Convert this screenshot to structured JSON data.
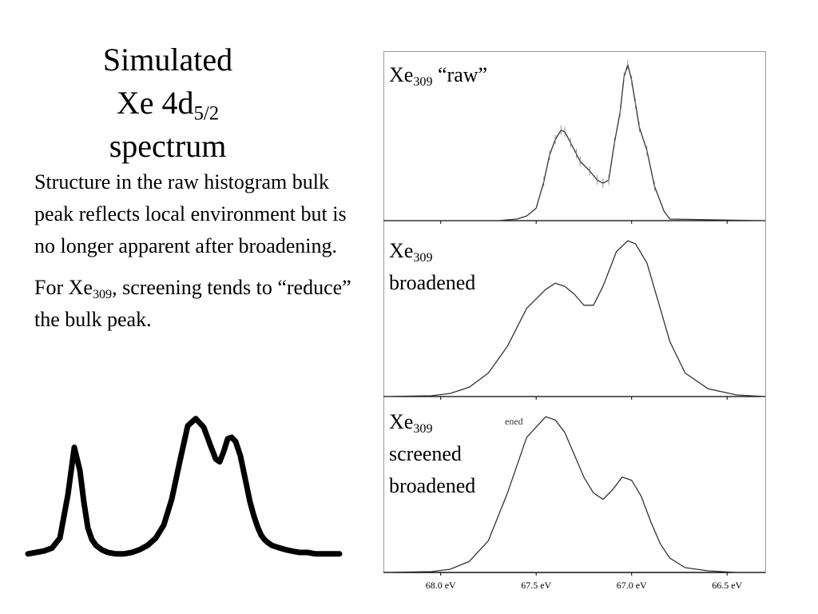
{
  "title": {
    "line1": "Simulated",
    "line2_main": "Xe 4d",
    "line2_sub": "5/2",
    "line3": "spectrum"
  },
  "body": {
    "para1": "Structure in the raw histogram bulk peak reflects local environment but is no longer apparent after broadening.",
    "para2_pre": "For Xe",
    "para2_sub": "309",
    "para2_post": ", screening tends to “reduce” the bulk peak."
  },
  "panels": [
    {
      "element": "Xe",
      "sub": "309",
      "desc1": "“raw”",
      "desc2": ""
    },
    {
      "element": "Xe",
      "sub": "309",
      "desc1": "broadened",
      "desc2": ""
    },
    {
      "element": "Xe",
      "sub": "309",
      "desc1": "screened",
      "desc2": "broadened",
      "fragment": "ened"
    }
  ],
  "chart_data": [
    {
      "type": "line",
      "x_unit": "eV",
      "xlim": [
        68.3,
        66.3
      ],
      "xticks": [
        {
          "value": 68.0,
          "label": "68.0 eV"
        },
        {
          "value": 67.5,
          "label": "67.5 eV"
        },
        {
          "value": 67.0,
          "label": "67.0 eV"
        },
        {
          "value": 66.5,
          "label": "66.5 eV"
        }
      ],
      "series": [
        {
          "x": [
            68.3,
            67.7,
            67.6,
            67.55,
            67.5,
            67.46,
            67.43,
            67.4,
            67.37,
            67.35,
            67.32,
            67.29,
            67.27,
            67.22,
            67.18,
            67.15,
            67.12,
            67.09,
            67.06,
            67.04,
            67.02,
            67.0,
            66.98,
            66.96,
            66.92,
            66.88,
            66.83,
            66.8,
            66.3
          ],
          "y": [
            0.0,
            0.0,
            0.01,
            0.03,
            0.08,
            0.25,
            0.42,
            0.52,
            0.58,
            0.57,
            0.5,
            0.43,
            0.38,
            0.32,
            0.26,
            0.24,
            0.26,
            0.5,
            0.7,
            0.92,
            1.0,
            0.9,
            0.75,
            0.6,
            0.45,
            0.22,
            0.06,
            0.01,
            0.0
          ]
        }
      ]
    },
    {
      "type": "line",
      "x_unit": "eV",
      "xlim": [
        68.3,
        66.3
      ],
      "series": [
        {
          "x": [
            68.3,
            68.05,
            67.95,
            67.85,
            67.75,
            67.65,
            67.55,
            67.45,
            67.4,
            67.35,
            67.3,
            67.25,
            67.2,
            67.15,
            67.08,
            67.02,
            66.98,
            66.92,
            66.86,
            66.8,
            66.72,
            66.6,
            66.45,
            66.3
          ],
          "y": [
            0.0,
            0.005,
            0.02,
            0.06,
            0.15,
            0.32,
            0.56,
            0.68,
            0.72,
            0.7,
            0.65,
            0.58,
            0.58,
            0.7,
            0.92,
            0.99,
            0.97,
            0.85,
            0.6,
            0.35,
            0.15,
            0.05,
            0.01,
            0.0
          ]
        }
      ]
    },
    {
      "type": "line",
      "x_unit": "eV",
      "xlim": [
        68.3,
        66.3
      ],
      "series": [
        {
          "x": [
            68.3,
            68.05,
            67.95,
            67.85,
            67.75,
            67.65,
            67.55,
            67.45,
            67.4,
            67.35,
            67.3,
            67.25,
            67.2,
            67.15,
            67.1,
            67.05,
            67.0,
            66.95,
            66.9,
            66.85,
            66.8,
            66.72,
            66.6,
            66.45,
            66.3
          ],
          "y": [
            0.0,
            0.005,
            0.02,
            0.07,
            0.2,
            0.5,
            0.85,
            0.98,
            0.96,
            0.88,
            0.74,
            0.6,
            0.5,
            0.46,
            0.52,
            0.6,
            0.58,
            0.48,
            0.32,
            0.18,
            0.09,
            0.03,
            0.01,
            0.0,
            0.0
          ]
        }
      ]
    }
  ],
  "sketch": {
    "x": [
      0,
      10,
      20,
      30,
      40,
      50,
      58,
      65,
      70,
      75,
      80,
      85,
      92,
      100,
      110,
      120,
      130,
      140,
      150,
      160,
      170,
      180,
      190,
      200,
      210,
      220,
      228,
      235,
      240,
      245,
      250,
      255,
      260,
      266,
      272,
      278,
      283,
      288,
      292,
      296,
      300,
      305,
      310,
      316,
      322,
      330,
      340,
      350,
      360,
      370,
      380,
      390
    ],
    "y": [
      0.04,
      0.05,
      0.06,
      0.08,
      0.15,
      0.45,
      0.78,
      0.62,
      0.4,
      0.22,
      0.14,
      0.1,
      0.07,
      0.05,
      0.04,
      0.04,
      0.05,
      0.07,
      0.1,
      0.15,
      0.24,
      0.42,
      0.68,
      0.93,
      0.98,
      0.92,
      0.8,
      0.7,
      0.68,
      0.75,
      0.84,
      0.85,
      0.82,
      0.72,
      0.56,
      0.4,
      0.3,
      0.22,
      0.17,
      0.14,
      0.12,
      0.1,
      0.09,
      0.08,
      0.07,
      0.06,
      0.05,
      0.05,
      0.04,
      0.04,
      0.04,
      0.04
    ]
  },
  "colors": {
    "line": "#333333",
    "axis": "#000000",
    "frame": "#9a9a9a"
  }
}
